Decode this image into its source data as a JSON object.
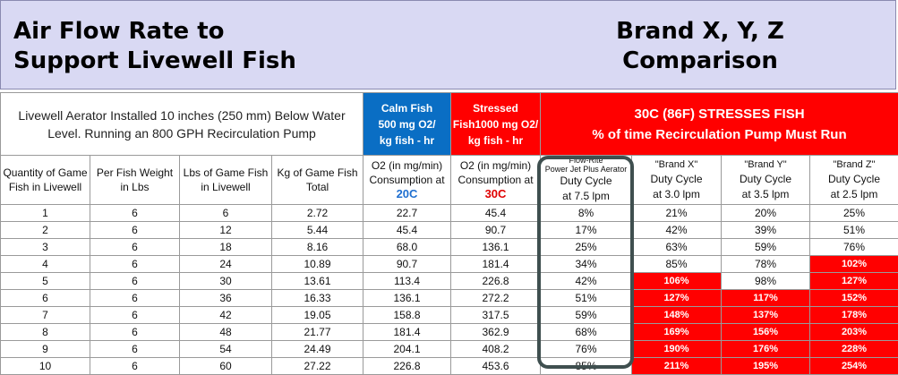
{
  "banner": {
    "title_line1": "Air Flow Rate to",
    "title_line2": "Support Livewell Fish",
    "right_line1": "Brand X, Y, Z",
    "right_line2": "Comparison"
  },
  "setup_description": "Livewell Aerator Installed 10 inches (250 mm) Below Water Level.  Running an 800 GPH Recirculation Pump",
  "calm": {
    "line1": "Calm Fish",
    "line2": "500 mg O2/",
    "line3": "kg fish - hr"
  },
  "stressed": {
    "line1": "Stressed",
    "line2": "Fish1000 mg O2/",
    "line3": "kg fish - hr"
  },
  "duty_banner": {
    "line1": "30C (86F) STRESSES FISH",
    "line2": "% of time Recirculation Pump Must Run"
  },
  "columns": {
    "qty": {
      "l1": "Quantity of Game",
      "l2": "Fish in Livewell"
    },
    "weight": {
      "l1": "Per Fish Weight",
      "l2": "in Lbs"
    },
    "lbs": {
      "l1": "Lbs of Game Fish",
      "l2": "in Livewell"
    },
    "kg": {
      "l1": "Kg of Game Fish",
      "l2": "Total"
    },
    "o2_20": {
      "l1": "O2 (in mg/min)",
      "l2": "Consumption at",
      "temp": "20C"
    },
    "o2_30": {
      "l1": "O2 (in mg/min)",
      "l2": "Consumption at",
      "temp": "30C"
    },
    "flowrite": {
      "l1": "Flow-Rite",
      "l2": "Power Jet Plus Aerator",
      "l3": "Duty Cycle",
      "l4": "at 7.5 lpm"
    },
    "brand_x": {
      "l1": "\"Brand X\"",
      "l2": "Duty Cycle",
      "l3": "at 3.0 lpm"
    },
    "brand_y": {
      "l1": "\"Brand Y\"",
      "l2": "Duty Cycle",
      "l3": "at 3.5 lpm"
    },
    "brand_z": {
      "l1": "\"Brand Z\"",
      "l2": "Duty Cycle",
      "l3": "at 2.5 lpm"
    }
  },
  "highlight_color": "#ff0000",
  "rows": [
    [
      "1",
      "6",
      "6",
      "2.72",
      "22.7",
      "45.4",
      "8%",
      "21%",
      "20%",
      "25%"
    ],
    [
      "2",
      "6",
      "12",
      "5.44",
      "45.4",
      "90.7",
      "17%",
      "42%",
      "39%",
      "51%"
    ],
    [
      "3",
      "6",
      "18",
      "8.16",
      "68.0",
      "136.1",
      "25%",
      "63%",
      "59%",
      "76%"
    ],
    [
      "4",
      "6",
      "24",
      "10.89",
      "90.7",
      "181.4",
      "34%",
      "85%",
      "78%",
      "102%"
    ],
    [
      "5",
      "6",
      "30",
      "13.61",
      "113.4",
      "226.8",
      "42%",
      "106%",
      "98%",
      "127%"
    ],
    [
      "6",
      "6",
      "36",
      "16.33",
      "136.1",
      "272.2",
      "51%",
      "127%",
      "117%",
      "152%"
    ],
    [
      "7",
      "6",
      "42",
      "19.05",
      "158.8",
      "317.5",
      "59%",
      "148%",
      "137%",
      "178%"
    ],
    [
      "8",
      "6",
      "48",
      "21.77",
      "181.4",
      "362.9",
      "68%",
      "169%",
      "156%",
      "203%"
    ],
    [
      "9",
      "6",
      "54",
      "24.49",
      "204.1",
      "408.2",
      "76%",
      "190%",
      "176%",
      "228%"
    ],
    [
      "10",
      "6",
      "60",
      "27.22",
      "226.8",
      "453.6",
      "85%",
      "211%",
      "195%",
      "254%"
    ]
  ],
  "highlighted_cells": [
    [
      3,
      9
    ],
    [
      4,
      7
    ],
    [
      4,
      9
    ],
    [
      5,
      7
    ],
    [
      5,
      8
    ],
    [
      5,
      9
    ],
    [
      6,
      7
    ],
    [
      6,
      8
    ],
    [
      6,
      9
    ],
    [
      7,
      7
    ],
    [
      7,
      8
    ],
    [
      7,
      9
    ],
    [
      8,
      7
    ],
    [
      8,
      8
    ],
    [
      8,
      9
    ],
    [
      9,
      7
    ],
    [
      9,
      8
    ],
    [
      9,
      9
    ]
  ]
}
